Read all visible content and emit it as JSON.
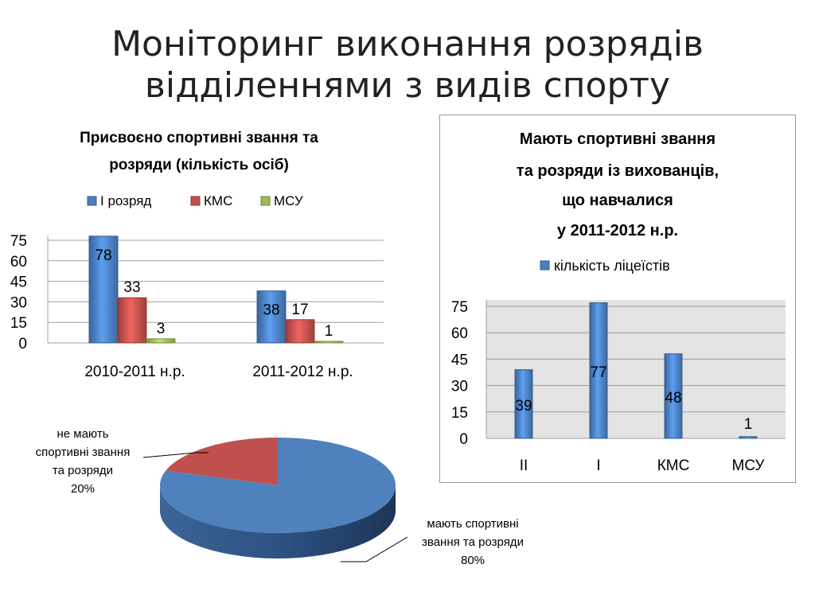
{
  "slide": {
    "title_lines": [
      "Моніторинг виконання розрядів",
      "відділеннями з видів спорту"
    ]
  },
  "chart_data": [
    {
      "type": "bar",
      "title_lines": [
        "Присвоєно спортивні звання та",
        "розряди (кількість осіб)"
      ],
      "categories": [
        "2010-2011 н.р.",
        "2011-2012 н.р."
      ],
      "series": [
        {
          "name": "І розряд",
          "values": [
            78,
            38
          ],
          "color": "#4a7fc1"
        },
        {
          "name": "КМС",
          "values": [
            33,
            17
          ],
          "color": "#c0504d"
        },
        {
          "name": "МСУ",
          "values": [
            3,
            1
          ],
          "color": "#9bbb59"
        }
      ],
      "ylim": [
        0,
        75
      ],
      "yticks": [
        "0",
        "15",
        "30",
        "45",
        "60",
        "75"
      ],
      "legend_position": "top",
      "grid": true
    },
    {
      "type": "bar",
      "title_lines": [
        "Мають спортивні звання",
        "та розряди із вихованців,",
        "що навчалися",
        "у 2011-2012 н.р."
      ],
      "categories": [
        "ІІ",
        "І",
        "КМС",
        "МСУ"
      ],
      "series": [
        {
          "name": "кількість ліцеїстів",
          "values": [
            39,
            77,
            48,
            1
          ],
          "color": "#4a7fc1"
        }
      ],
      "ylim": [
        0,
        75
      ],
      "yticks": [
        "0",
        "15",
        "30",
        "45",
        "60",
        "75"
      ],
      "legend_position": "top",
      "grid": true
    },
    {
      "type": "pie",
      "slices": [
        {
          "label_lines": [
            "мають спортивні",
            "звання та розряди",
            "80%"
          ],
          "value": 80,
          "color": "#4f81bd"
        },
        {
          "label_lines": [
            "не мають",
            "спортивні звання",
            "та розряди",
            "20%"
          ],
          "value": 20,
          "color": "#c0504d"
        }
      ]
    }
  ]
}
